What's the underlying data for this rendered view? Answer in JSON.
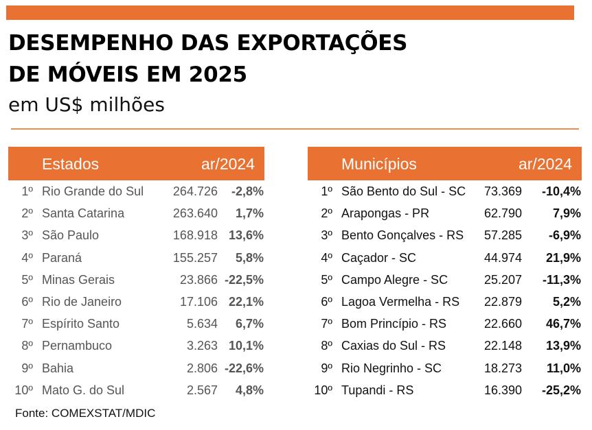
{
  "colors": {
    "accent": "#E97132"
  },
  "header": {
    "title_line1": "DESEMPENHO DAS EXPORTAÇÕES",
    "title_line2": "DE MÓVEIS EM 2025",
    "subtitle": "em US$ milhões"
  },
  "states": {
    "col_name": "Estados",
    "col_change": "ar/2024",
    "rows": [
      {
        "rank": "1º",
        "name": "Rio Grande do Sul",
        "value": "264.726",
        "change": "-2,8%"
      },
      {
        "rank": "2º",
        "name": "Santa Catarina",
        "value": "263.640",
        "change": "1,7%"
      },
      {
        "rank": "3º",
        "name": "São Paulo",
        "value": "168.918",
        "change": "13,6%"
      },
      {
        "rank": "4º",
        "name": "Paraná",
        "value": "155.257",
        "change": "5,8%"
      },
      {
        "rank": "5º",
        "name": "Minas Gerais",
        "value": "23.866",
        "change": "-22,5%"
      },
      {
        "rank": "6º",
        "name": "Rio de Janeiro",
        "value": "17.106",
        "change": "22,1%"
      },
      {
        "rank": "7º",
        "name": "Espírito Santo",
        "value": "5.634",
        "change": "6,7%"
      },
      {
        "rank": "8º",
        "name": "Pernambuco",
        "value": "3.263",
        "change": "10,1%"
      },
      {
        "rank": "9º",
        "name": "Bahia",
        "value": "2.806",
        "change": "-22,6%"
      },
      {
        "rank": "10º",
        "name": "Mato G. do Sul",
        "value": "2.567",
        "change": "4,8%"
      }
    ]
  },
  "municipalities": {
    "col_name": "Municípios",
    "col_change": "ar/2024",
    "rows": [
      {
        "rank": "1º",
        "name": "São Bento do Sul - SC",
        "value": "73.369",
        "change": "-10,4%"
      },
      {
        "rank": "2º",
        "name": "Arapongas - PR",
        "value": "62.790",
        "change": "7,9%"
      },
      {
        "rank": "3º",
        "name": "Bento Gonçalves - RS",
        "value": "57.285",
        "change": "-6,9%"
      },
      {
        "rank": "4º",
        "name": "Caçador - SC",
        "value": "44.974",
        "change": "21,9%"
      },
      {
        "rank": "5º",
        "name": "Campo Alegre - SC",
        "value": "25.207",
        "change": "-11,3%"
      },
      {
        "rank": "6º",
        "name": "Lagoa Vermelha - RS",
        "value": "22.879",
        "change": "5,2%"
      },
      {
        "rank": "7º",
        "name": "Bom Princípio - RS",
        "value": "22.660",
        "change": "46,7%"
      },
      {
        "rank": "8º",
        "name": "Caxias do Sul - RS",
        "value": "22.148",
        "change": "13,9%"
      },
      {
        "rank": "9º",
        "name": "Rio Negrinho - SC",
        "value": "18.273",
        "change": "11,0%"
      },
      {
        "rank": "10º",
        "name": "Tupandi - RS",
        "value": "16.390",
        "change": "-25,2%"
      }
    ]
  },
  "source": "Fonte: COMEXSTAT/MDIC"
}
